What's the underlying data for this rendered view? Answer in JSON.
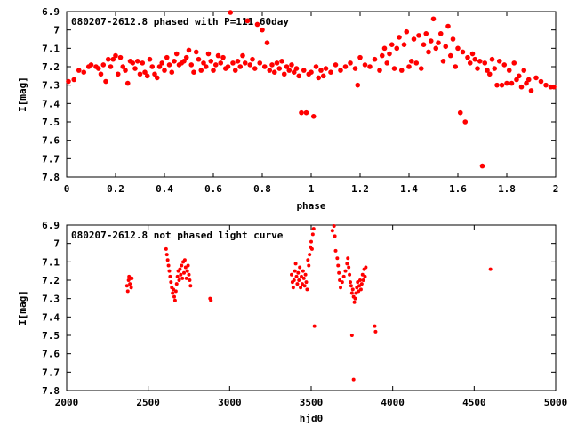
{
  "chart_data": [
    {
      "type": "scatter",
      "title": "080207-2612.8 phased with P=111.60day",
      "xlabel": "phase",
      "ylabel": "I[mag]",
      "xlim": [
        0,
        2
      ],
      "ylim": [
        6.9,
        7.8
      ],
      "y_inverted": true,
      "xticks": [
        "0",
        "0.2",
        "0.4",
        "0.6",
        "0.8",
        "1",
        "1.2",
        "1.4",
        "1.6",
        "1.8",
        "2"
      ],
      "yticks": [
        "6.9",
        "7",
        "7.1",
        "7.2",
        "7.3",
        "7.4",
        "7.5",
        "7.6",
        "7.7",
        "7.8"
      ],
      "marker": "filled-circle",
      "color": "#ff0000",
      "points": [
        [
          0.0,
          7.28
        ],
        [
          0.03,
          7.27
        ],
        [
          0.05,
          7.22
        ],
        [
          0.07,
          7.23
        ],
        [
          0.09,
          7.2
        ],
        [
          0.1,
          7.19
        ],
        [
          0.12,
          7.2
        ],
        [
          0.13,
          7.21
        ],
        [
          0.14,
          7.24
        ],
        [
          0.15,
          7.19
        ],
        [
          0.16,
          7.28
        ],
        [
          0.17,
          7.16
        ],
        [
          0.18,
          7.2
        ],
        [
          0.19,
          7.16
        ],
        [
          0.2,
          7.14
        ],
        [
          0.21,
          7.24
        ],
        [
          0.22,
          7.15
        ],
        [
          0.23,
          7.2
        ],
        [
          0.24,
          7.22
        ],
        [
          0.25,
          7.29
        ],
        [
          0.26,
          7.17
        ],
        [
          0.27,
          7.18
        ],
        [
          0.28,
          7.21
        ],
        [
          0.29,
          7.17
        ],
        [
          0.3,
          7.24
        ],
        [
          0.31,
          7.18
        ],
        [
          0.32,
          7.23
        ],
        [
          0.33,
          7.25
        ],
        [
          0.34,
          7.16
        ],
        [
          0.35,
          7.2
        ],
        [
          0.36,
          7.24
        ],
        [
          0.37,
          7.26
        ],
        [
          0.38,
          7.2
        ],
        [
          0.39,
          7.18
        ],
        [
          0.4,
          7.22
        ],
        [
          0.41,
          7.15
        ],
        [
          0.42,
          7.19
        ],
        [
          0.43,
          7.23
        ],
        [
          0.44,
          7.17
        ],
        [
          0.45,
          7.13
        ],
        [
          0.46,
          7.19
        ],
        [
          0.47,
          7.18
        ],
        [
          0.48,
          7.17
        ],
        [
          0.49,
          7.15
        ],
        [
          0.5,
          7.11
        ],
        [
          0.51,
          7.19
        ],
        [
          0.52,
          7.23
        ],
        [
          0.53,
          7.12
        ],
        [
          0.54,
          7.16
        ],
        [
          0.55,
          7.22
        ],
        [
          0.56,
          7.18
        ],
        [
          0.57,
          7.2
        ],
        [
          0.58,
          7.13
        ],
        [
          0.59,
          7.17
        ],
        [
          0.6,
          7.22
        ],
        [
          0.61,
          7.19
        ],
        [
          0.62,
          7.14
        ],
        [
          0.63,
          7.18
        ],
        [
          0.64,
          7.15
        ],
        [
          0.65,
          7.21
        ],
        [
          0.66,
          7.2
        ],
        [
          0.67,
          6.9
        ],
        [
          0.68,
          7.18
        ],
        [
          0.69,
          7.22
        ],
        [
          0.7,
          7.17
        ],
        [
          0.71,
          7.2
        ],
        [
          0.72,
          7.14
        ],
        [
          0.73,
          7.18
        ],
        [
          0.74,
          6.95
        ],
        [
          0.75,
          7.19
        ],
        [
          0.76,
          7.16
        ],
        [
          0.77,
          7.21
        ],
        [
          0.78,
          6.97
        ],
        [
          0.79,
          7.18
        ],
        [
          0.8,
          7.0
        ],
        [
          0.81,
          7.2
        ],
        [
          0.82,
          7.07
        ],
        [
          0.83,
          7.22
        ],
        [
          0.84,
          7.19
        ],
        [
          0.85,
          7.23
        ],
        [
          0.86,
          7.18
        ],
        [
          0.87,
          7.21
        ],
        [
          0.88,
          7.17
        ],
        [
          0.89,
          7.24
        ],
        [
          0.9,
          7.2
        ],
        [
          0.91,
          7.22
        ],
        [
          0.92,
          7.19
        ],
        [
          0.93,
          7.23
        ],
        [
          0.94,
          7.21
        ],
        [
          0.95,
          7.25
        ],
        [
          0.96,
          7.45
        ],
        [
          0.97,
          7.22
        ],
        [
          0.98,
          7.45
        ],
        [
          0.99,
          7.24
        ],
        [
          1.0,
          7.23
        ],
        [
          1.01,
          7.47
        ],
        [
          1.02,
          7.2
        ],
        [
          1.03,
          7.26
        ],
        [
          1.04,
          7.22
        ],
        [
          1.05,
          7.25
        ],
        [
          1.06,
          7.21
        ],
        [
          1.08,
          7.23
        ],
        [
          1.1,
          7.19
        ],
        [
          1.12,
          7.22
        ],
        [
          1.14,
          7.2
        ],
        [
          1.16,
          7.18
        ],
        [
          1.18,
          7.21
        ],
        [
          1.19,
          7.3
        ],
        [
          1.2,
          7.15
        ],
        [
          1.22,
          7.19
        ],
        [
          1.24,
          7.2
        ],
        [
          1.26,
          7.16
        ],
        [
          1.28,
          7.22
        ],
        [
          1.29,
          7.14
        ],
        [
          1.3,
          7.1
        ],
        [
          1.31,
          7.18
        ],
        [
          1.32,
          7.13
        ],
        [
          1.33,
          7.08
        ],
        [
          1.34,
          7.21
        ],
        [
          1.35,
          7.1
        ],
        [
          1.36,
          7.04
        ],
        [
          1.37,
          7.22
        ],
        [
          1.38,
          7.08
        ],
        [
          1.39,
          7.01
        ],
        [
          1.4,
          7.2
        ],
        [
          1.41,
          7.17
        ],
        [
          1.42,
          7.05
        ],
        [
          1.43,
          7.18
        ],
        [
          1.44,
          7.03
        ],
        [
          1.45,
          7.21
        ],
        [
          1.46,
          7.08
        ],
        [
          1.47,
          7.02
        ],
        [
          1.48,
          7.12
        ],
        [
          1.49,
          7.06
        ],
        [
          1.5,
          6.94
        ],
        [
          1.51,
          7.1
        ],
        [
          1.52,
          7.07
        ],
        [
          1.53,
          7.02
        ],
        [
          1.54,
          7.17
        ],
        [
          1.55,
          7.09
        ],
        [
          1.56,
          6.98
        ],
        [
          1.57,
          7.14
        ],
        [
          1.58,
          7.05
        ],
        [
          1.59,
          7.2
        ],
        [
          1.6,
          7.1
        ],
        [
          1.61,
          7.45
        ],
        [
          1.62,
          7.12
        ],
        [
          1.63,
          7.5
        ],
        [
          1.64,
          7.15
        ],
        [
          1.65,
          7.18
        ],
        [
          1.66,
          7.13
        ],
        [
          1.67,
          7.16
        ],
        [
          1.68,
          7.21
        ],
        [
          1.69,
          7.17
        ],
        [
          1.7,
          7.74
        ],
        [
          1.71,
          7.18
        ],
        [
          1.72,
          7.22
        ],
        [
          1.73,
          7.24
        ],
        [
          1.74,
          7.16
        ],
        [
          1.75,
          7.21
        ],
        [
          1.76,
          7.3
        ],
        [
          1.77,
          7.17
        ],
        [
          1.78,
          7.3
        ],
        [
          1.79,
          7.19
        ],
        [
          1.8,
          7.29
        ],
        [
          1.81,
          7.22
        ],
        [
          1.82,
          7.29
        ],
        [
          1.83,
          7.18
        ],
        [
          1.84,
          7.27
        ],
        [
          1.85,
          7.25
        ],
        [
          1.86,
          7.31
        ],
        [
          1.87,
          7.22
        ],
        [
          1.88,
          7.29
        ],
        [
          1.89,
          7.27
        ],
        [
          1.9,
          7.33
        ],
        [
          1.92,
          7.26
        ],
        [
          1.94,
          7.28
        ],
        [
          1.96,
          7.3
        ],
        [
          1.98,
          7.31
        ],
        [
          2.0,
          7.31
        ]
      ]
    },
    {
      "type": "scatter",
      "title": "080207-2612.8 not phased light curve",
      "xlabel": "hjd0",
      "ylabel": "I[mag]",
      "xlim": [
        2000,
        5000
      ],
      "ylim": [
        6.9,
        7.8
      ],
      "y_inverted": true,
      "xticks": [
        "2000",
        "2500",
        "3000",
        "3500",
        "4000",
        "4500",
        "5000"
      ],
      "yticks": [
        "6.9",
        "7",
        "7.1",
        "7.2",
        "7.3",
        "7.4",
        "7.5",
        "7.6",
        "7.7",
        "7.8"
      ],
      "marker": "filled-circle",
      "color": "#ff0000",
      "points": [
        [
          2370,
          7.23
        ],
        [
          2375,
          7.26
        ],
        [
          2380,
          7.2
        ],
        [
          2383,
          7.18
        ],
        [
          2388,
          7.22
        ],
        [
          2392,
          7.19
        ],
        [
          2396,
          7.24
        ],
        [
          2400,
          7.19
        ],
        [
          2610,
          7.03
        ],
        [
          2615,
          7.06
        ],
        [
          2620,
          7.09
        ],
        [
          2625,
          7.12
        ],
        [
          2630,
          7.15
        ],
        [
          2635,
          7.18
        ],
        [
          2640,
          7.21
        ],
        [
          2645,
          7.24
        ],
        [
          2650,
          7.27
        ],
        [
          2655,
          7.25
        ],
        [
          2660,
          7.29
        ],
        [
          2665,
          7.31
        ],
        [
          2670,
          7.26
        ],
        [
          2675,
          7.22
        ],
        [
          2680,
          7.18
        ],
        [
          2685,
          7.15
        ],
        [
          2690,
          7.2
        ],
        [
          2695,
          7.14
        ],
        [
          2700,
          7.17
        ],
        [
          2705,
          7.12
        ],
        [
          2710,
          7.19
        ],
        [
          2715,
          7.1
        ],
        [
          2720,
          7.16
        ],
        [
          2725,
          7.09
        ],
        [
          2730,
          7.13
        ],
        [
          2735,
          7.19
        ],
        [
          2740,
          7.15
        ],
        [
          2745,
          7.12
        ],
        [
          2750,
          7.17
        ],
        [
          2755,
          7.2
        ],
        [
          2760,
          7.23
        ],
        [
          2880,
          7.3
        ],
        [
          2885,
          7.31
        ],
        [
          3380,
          7.17
        ],
        [
          3385,
          7.21
        ],
        [
          3390,
          7.24
        ],
        [
          3395,
          7.2
        ],
        [
          3400,
          7.15
        ],
        [
          3405,
          7.11
        ],
        [
          3410,
          7.18
        ],
        [
          3415,
          7.22
        ],
        [
          3420,
          7.16
        ],
        [
          3425,
          7.2
        ],
        [
          3430,
          7.13
        ],
        [
          3435,
          7.24
        ],
        [
          3440,
          7.18
        ],
        [
          3445,
          7.22
        ],
        [
          3450,
          7.15
        ],
        [
          3455,
          7.19
        ],
        [
          3460,
          7.23
        ],
        [
          3465,
          7.17
        ],
        [
          3470,
          7.21
        ],
        [
          3475,
          7.25
        ],
        [
          3480,
          7.09
        ],
        [
          3485,
          7.12
        ],
        [
          3490,
          7.06
        ],
        [
          3495,
          7.02
        ],
        [
          3500,
          6.99
        ],
        [
          3505,
          7.03
        ],
        [
          3510,
          6.95
        ],
        [
          3515,
          6.92
        ],
        [
          3520,
          7.45
        ],
        [
          3630,
          6.93
        ],
        [
          3640,
          6.9
        ],
        [
          3645,
          6.96
        ],
        [
          3650,
          7.04
        ],
        [
          3660,
          7.08
        ],
        [
          3665,
          7.12
        ],
        [
          3670,
          7.16
        ],
        [
          3675,
          7.2
        ],
        [
          3680,
          7.24
        ],
        [
          3690,
          7.21
        ],
        [
          3700,
          7.18
        ],
        [
          3710,
          7.15
        ],
        [
          3720,
          7.11
        ],
        [
          3725,
          7.08
        ],
        [
          3730,
          7.13
        ],
        [
          3735,
          7.17
        ],
        [
          3740,
          7.21
        ],
        [
          3745,
          7.23
        ],
        [
          3750,
          7.27
        ],
        [
          3755,
          7.25
        ],
        [
          3760,
          7.29
        ],
        [
          3765,
          7.32
        ],
        [
          3770,
          7.3
        ],
        [
          3775,
          7.27
        ],
        [
          3780,
          7.24
        ],
        [
          3785,
          7.21
        ],
        [
          3790,
          7.26
        ],
        [
          3795,
          7.23
        ],
        [
          3800,
          7.2
        ],
        [
          3805,
          7.25
        ],
        [
          3810,
          7.22
        ],
        [
          3815,
          7.17
        ],
        [
          3820,
          7.2
        ],
        [
          3825,
          7.14
        ],
        [
          3830,
          7.18
        ],
        [
          3835,
          7.13
        ],
        [
          3750,
          7.5
        ],
        [
          3760,
          7.74
        ],
        [
          3890,
          7.45
        ],
        [
          3895,
          7.48
        ],
        [
          4600,
          7.14
        ]
      ]
    }
  ]
}
